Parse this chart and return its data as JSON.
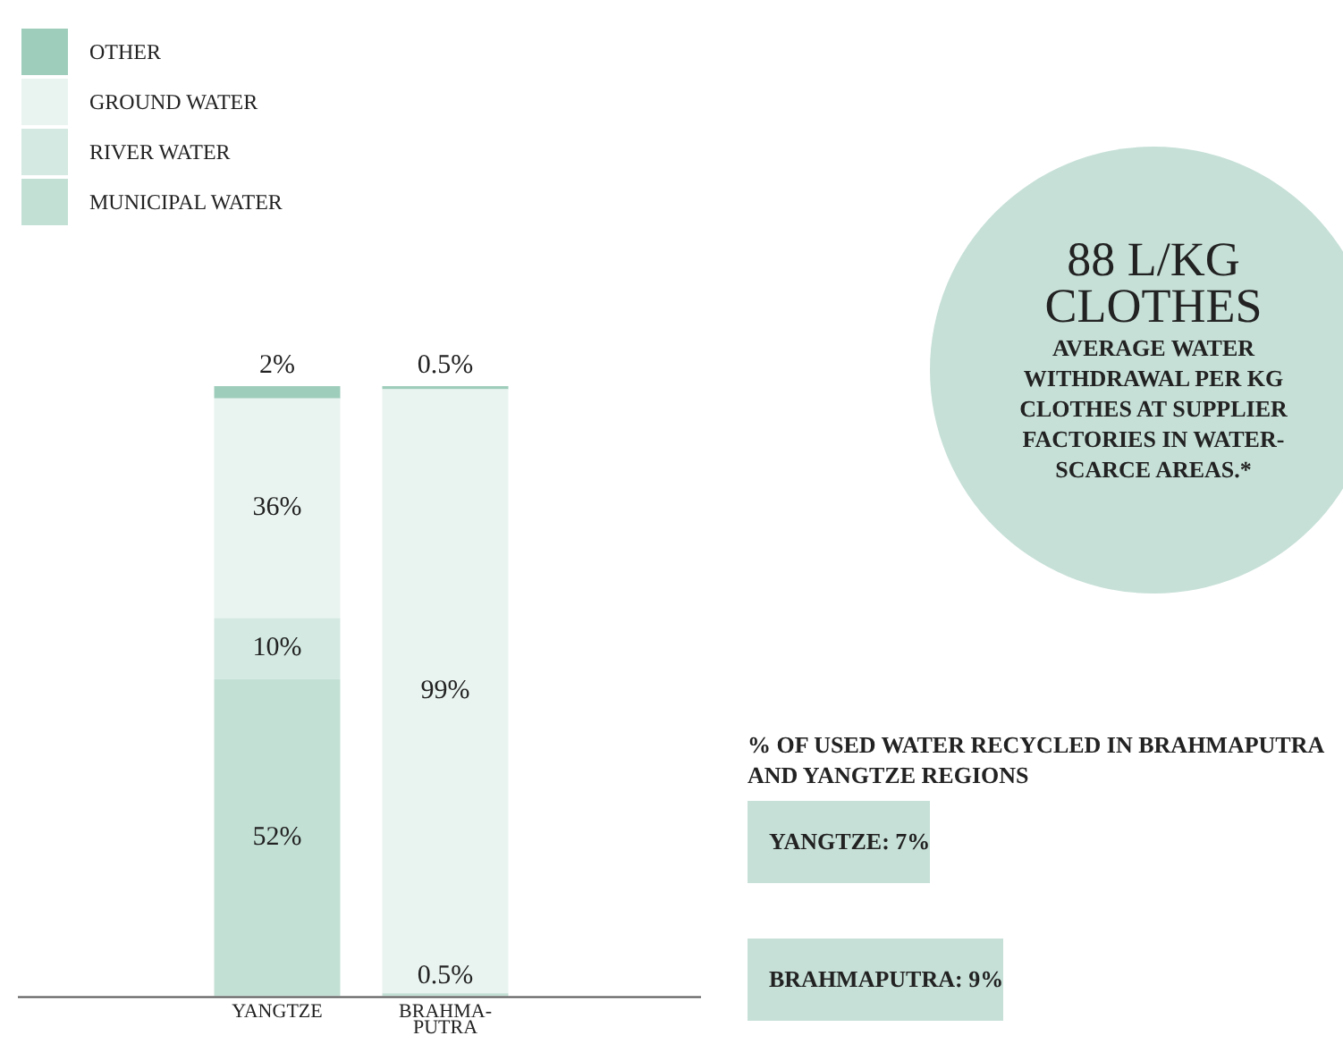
{
  "chart_data": [
    {
      "type": "bar",
      "stacked": true,
      "categories": [
        "YANGTZE",
        "BRAHMA-PUTRA"
      ],
      "legend": "top left",
      "series": [
        {
          "name": "MUNICIPAL WATER",
          "color": "#c3e0d5",
          "values": [
            52,
            0.5
          ],
          "value_labels": [
            "52%",
            "0.5%"
          ]
        },
        {
          "name": "RIVER WATER",
          "color": "#d3e9e1",
          "values": [
            10,
            0
          ],
          "value_labels": [
            "10%",
            null
          ]
        },
        {
          "name": "GROUND WATER",
          "color": "#e9f4f0",
          "values": [
            36,
            99
          ],
          "value_labels": [
            "36%",
            "99%"
          ]
        },
        {
          "name": "OTHER",
          "color": "#9fcdbb",
          "values": [
            2,
            0.5
          ],
          "value_labels": [
            "2%",
            "0.5%"
          ]
        }
      ]
    },
    {
      "type": "other",
      "title": "88 L/KG CLOTHES",
      "subtitle": "AVERAGE WATER WITHDRAWAL PER KG CLOTHES AT SUPPLIER FACTORIES IN WATER-SCARCE AREAS.*",
      "annotations": [
        "% OF USED WATER RECYCLED IN BRAHMAPUTRA AND YANGTZE REGIONS",
        "YANGTZE: 7%",
        "BRAHMAPUTRA: 9%"
      ]
    }
  ]
}
